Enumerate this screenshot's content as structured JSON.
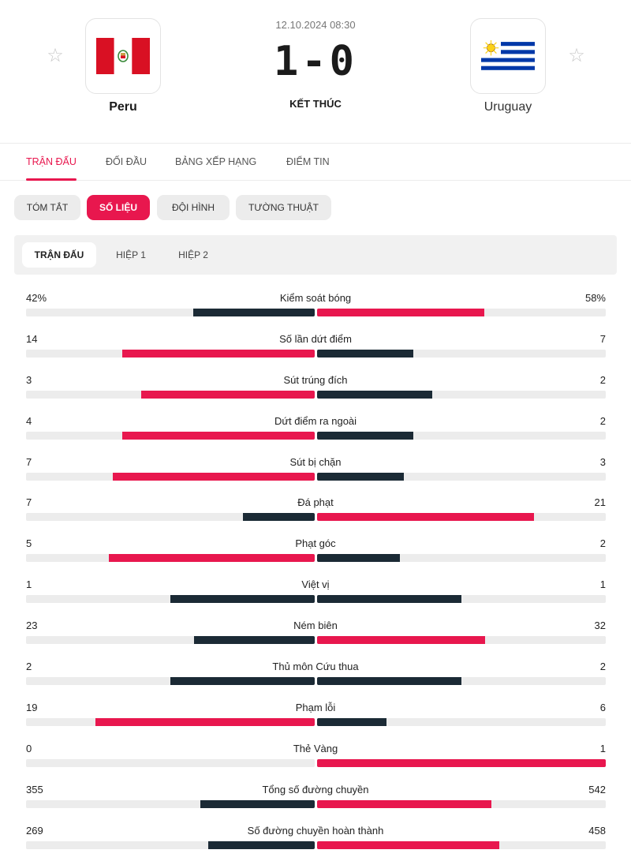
{
  "match": {
    "date": "12.10.2024 08:30",
    "score": "1-0",
    "status": "KẾT THÚC",
    "home": {
      "name": "Peru",
      "flag": "peru-flag"
    },
    "away": {
      "name": "Uruguay",
      "flag": "uruguay-flag"
    }
  },
  "main_tabs": [
    "TRẬN ĐẤU",
    "ĐỐI ĐẦU",
    "BẢNG XẾP HẠNG",
    "ĐIỂM TIN"
  ],
  "main_tab_active": "TRẬN ĐẤU",
  "sub_tabs": [
    "TÓM TẮT",
    "SỐ LIỆU",
    "ĐỘI HÌNH",
    "TƯỜNG THUẬT"
  ],
  "sub_tab_active": "SỐ LIỆU",
  "period_tabs": [
    "TRẬN ĐẤU",
    "HIỆP 1",
    "HIỆP 2"
  ],
  "period_tab_active": "TRẬN ĐẤU",
  "colors": {
    "accent": "#e8174e",
    "dark": "#1b2a35",
    "track": "#ececec"
  },
  "stats": [
    {
      "label": "Kiểm soát bóng",
      "home": "42%",
      "away": "58%",
      "home_share": 0.42,
      "away_share": 0.58
    },
    {
      "label": "Số lần dứt điểm",
      "home": "14",
      "away": "7",
      "home_share": 0.667,
      "away_share": 0.333
    },
    {
      "label": "Sút trúng đích",
      "home": "3",
      "away": "2",
      "home_share": 0.6,
      "away_share": 0.4
    },
    {
      "label": "Dứt điểm ra ngoài",
      "home": "4",
      "away": "2",
      "home_share": 0.667,
      "away_share": 0.333
    },
    {
      "label": "Sút bị chặn",
      "home": "7",
      "away": "3",
      "home_share": 0.7,
      "away_share": 0.3
    },
    {
      "label": "Đá phạt",
      "home": "7",
      "away": "21",
      "home_share": 0.25,
      "away_share": 0.75
    },
    {
      "label": "Phạt góc",
      "home": "5",
      "away": "2",
      "home_share": 0.714,
      "away_share": 0.286
    },
    {
      "label": "Việt vị",
      "home": "1",
      "away": "1",
      "home_share": 0.5,
      "away_share": 0.5
    },
    {
      "label": "Ném biên",
      "home": "23",
      "away": "32",
      "home_share": 0.418,
      "away_share": 0.582
    },
    {
      "label": "Thủ môn Cứu thua",
      "home": "2",
      "away": "2",
      "home_share": 0.5,
      "away_share": 0.5
    },
    {
      "label": "Phạm lỗi",
      "home": "19",
      "away": "6",
      "home_share": 0.76,
      "away_share": 0.24
    },
    {
      "label": "Thẻ Vàng",
      "home": "0",
      "away": "1",
      "home_share": 0.0,
      "away_share": 1.0
    },
    {
      "label": "Tổng số đường chuyền",
      "home": "355",
      "away": "542",
      "home_share": 0.396,
      "away_share": 0.604
    },
    {
      "label": "Số đường chuyền hoàn thành",
      "home": "269",
      "away": "458",
      "home_share": 0.37,
      "away_share": 0.63
    }
  ]
}
